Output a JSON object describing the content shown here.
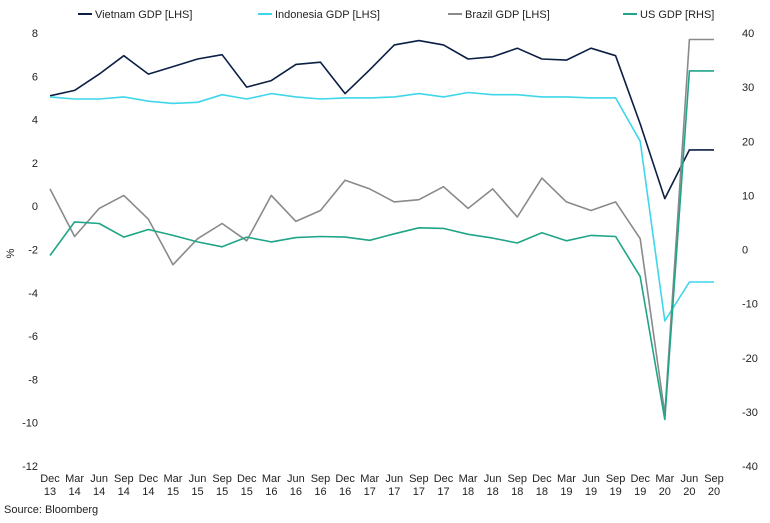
{
  "source_label": "Source: Bloomberg",
  "chart_data": {
    "type": "line",
    "x": [
      "Dec\n13",
      "Mar\n14",
      "Jun\n14",
      "Sep\n14",
      "Dec\n14",
      "Mar\n15",
      "Jun\n15",
      "Sep\n15",
      "Dec\n15",
      "Mar\n16",
      "Jun\n16",
      "Sep\n16",
      "Dec\n16",
      "Mar\n17",
      "Jun\n17",
      "Sep\n17",
      "Dec\n17",
      "Mar\n18",
      "Jun\n18",
      "Sep\n18",
      "Dec\n18",
      "Mar\n19",
      "Jun\n19",
      "Sep\n19",
      "Dec\n19",
      "Mar\n20",
      "Jun\n20",
      "Sep\n20"
    ],
    "ylabel": "%",
    "ylim": [
      -12,
      8
    ],
    "yticks": [
      -12,
      -10,
      -8,
      -6,
      -4,
      -2,
      0,
      2,
      4,
      6,
      8
    ],
    "y2lim": [
      -40,
      40
    ],
    "y2ticks": [
      -40,
      -30,
      -20,
      -10,
      0,
      10,
      20,
      30,
      40
    ],
    "grid": false,
    "legend_position": "top",
    "series": [
      {
        "name": "Vietnam GDP [LHS]",
        "axis": "left",
        "color": "#0b1f45",
        "values": [
          5.1,
          5.35,
          6.1,
          6.95,
          6.1,
          6.45,
          6.8,
          7.0,
          5.5,
          5.8,
          6.55,
          6.65,
          5.2,
          6.3,
          7.45,
          7.65,
          7.45,
          6.8,
          6.9,
          7.3,
          6.8,
          6.75,
          7.3,
          6.95,
          3.8,
          0.35,
          2.6,
          2.6
        ]
      },
      {
        "name": "Indonesia GDP [LHS]",
        "axis": "left",
        "color": "#3fd6ea",
        "values": [
          5.05,
          4.95,
          4.95,
          5.05,
          4.85,
          4.75,
          4.8,
          5.15,
          4.95,
          5.2,
          5.05,
          4.95,
          5.0,
          5.0,
          5.05,
          5.2,
          5.05,
          5.25,
          5.15,
          5.15,
          5.05,
          5.05,
          5.0,
          5.0,
          3.0,
          -5.3,
          -3.5,
          -3.5
        ]
      },
      {
        "name": "Brazil GDP [LHS]",
        "axis": "left",
        "color": "#8a8a8a",
        "values": [
          0.8,
          -1.4,
          -0.1,
          0.5,
          -0.6,
          -2.7,
          -1.5,
          -0.8,
          -1.6,
          0.5,
          -0.7,
          -0.2,
          1.2,
          0.8,
          0.2,
          0.3,
          0.9,
          -0.1,
          0.8,
          -0.5,
          1.3,
          0.2,
          -0.2,
          0.2,
          -1.5,
          -9.6,
          7.7,
          7.7
        ]
      },
      {
        "name": "US GDP [RHS]",
        "axis": "right",
        "color": "#1fa587",
        "values": [
          -1.1,
          5.1,
          4.8,
          2.3,
          3.7,
          2.6,
          1.4,
          0.5,
          2.3,
          1.4,
          2.2,
          2.4,
          2.3,
          1.7,
          2.9,
          4.0,
          3.9,
          2.8,
          2.1,
          1.2,
          3.1,
          1.6,
          2.6,
          2.4,
          -5.0,
          -31.4,
          33.0,
          33.0
        ]
      }
    ]
  }
}
